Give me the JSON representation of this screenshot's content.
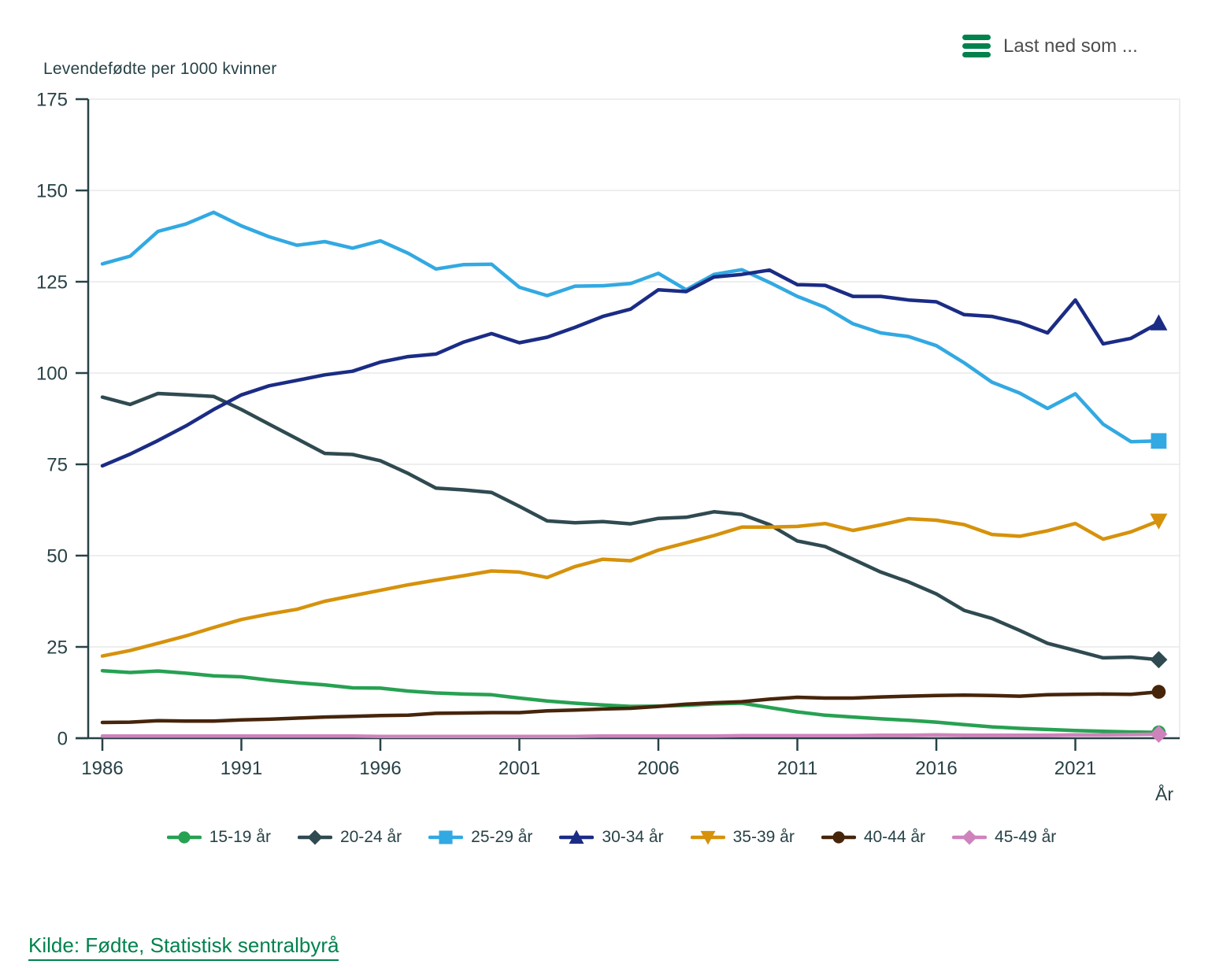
{
  "header": {
    "download_label": "Last ned som ...",
    "icons": {
      "download_menu": "hamburger-menu-icon"
    }
  },
  "colors": {
    "accent_green": "#00824d",
    "text_dark": "#274247",
    "download_text": "#4d4d4d",
    "grid": "#e8e8e8",
    "axis": "#274247"
  },
  "source": {
    "label": "Kilde: Fødte, Statistisk sentralbyrå"
  },
  "chart_data": {
    "type": "line",
    "title": "Levendefødte per 1000 kvinner",
    "xlabel": "År",
    "ylabel": "Levendefødte per 1000 kvinner",
    "ylim": [
      0,
      175
    ],
    "yticks": [
      0,
      25,
      50,
      75,
      100,
      125,
      150,
      175
    ],
    "xticks": [
      1986,
      1991,
      1996,
      2001,
      2006,
      2011,
      2016,
      2021
    ],
    "grid": "horizontal",
    "legend_position": "bottom",
    "x": [
      1986,
      1987,
      1988,
      1989,
      1990,
      1991,
      1992,
      1993,
      1994,
      1995,
      1996,
      1997,
      1998,
      1999,
      2000,
      2001,
      2002,
      2003,
      2004,
      2005,
      2006,
      2007,
      2008,
      2009,
      2010,
      2011,
      2012,
      2013,
      2014,
      2015,
      2016,
      2017,
      2018,
      2019,
      2020,
      2021,
      2022,
      2023,
      2024
    ],
    "series": [
      {
        "name": "15-19 år",
        "color": "#27a152",
        "marker": "circle",
        "values": [
          18.5,
          18,
          18.4,
          17.8,
          17.1,
          16.8,
          15.9,
          15.2,
          14.6,
          13.8,
          13.7,
          12.9,
          12.4,
          12.1,
          11.9,
          11,
          10.2,
          9.6,
          9.1,
          8.7,
          8.8,
          9,
          9.4,
          9.6,
          8.4,
          7.2,
          6.3,
          5.8,
          5.3,
          4.9,
          4.4,
          3.7,
          3.1,
          2.7,
          2.4,
          2.1,
          1.9,
          1.7,
          1.6
        ]
      },
      {
        "name": "20-24 år",
        "color": "#2f4a50",
        "marker": "diamond",
        "values": [
          93.4,
          91.4,
          94.4,
          94,
          93.6,
          90,
          86,
          82,
          78,
          77.7,
          76,
          72.5,
          68.5,
          68,
          67.3,
          63.5,
          59.5,
          59,
          59.3,
          58.7,
          60.2,
          60.5,
          62,
          61.3,
          58.5,
          54,
          52.5,
          49,
          45.5,
          42.8,
          39.5,
          35,
          32.8,
          29.5,
          26,
          24,
          22,
          22.2,
          21.5
        ]
      },
      {
        "name": "25-29 år",
        "color": "#32a9e2",
        "marker": "square",
        "values": [
          129.9,
          132,
          138.8,
          140.8,
          144,
          140.3,
          137.3,
          135,
          136,
          134.2,
          136.2,
          132.8,
          128.5,
          129.7,
          129.8,
          123.5,
          121.2,
          123.8,
          123.9,
          124.5,
          127.3,
          122.8,
          127,
          128.3,
          124.8,
          121,
          118,
          113.5,
          111,
          110,
          107.5,
          102.8,
          97.5,
          94.5,
          90.3,
          94.3,
          86,
          81.2,
          81.4
        ]
      },
      {
        "name": "30-34 år",
        "color": "#1b2c85",
        "marker": "triangle-up",
        "values": [
          74.6,
          77.8,
          81.5,
          85.5,
          90,
          94,
          96.5,
          98,
          99.5,
          100.5,
          103,
          104.5,
          105.2,
          108.5,
          110.8,
          108.3,
          109.8,
          112.5,
          115.5,
          117.5,
          122.8,
          122.3,
          126.3,
          127,
          128.2,
          124.2,
          124,
          121,
          121,
          120,
          119.5,
          116,
          115.5,
          113.8,
          111,
          120,
          108,
          109.5,
          113.7
        ]
      },
      {
        "name": "35-39 år",
        "color": "#d6920c",
        "marker": "triangle-down",
        "values": [
          22.5,
          24,
          26,
          28,
          30.3,
          32.5,
          34,
          35.3,
          37.5,
          39,
          40.5,
          42,
          43.3,
          44.5,
          45.8,
          45.5,
          44,
          47,
          49,
          48.6,
          51.5,
          53.5,
          55.5,
          57.8,
          57.8,
          58,
          58.8,
          56.9,
          58.4,
          60.1,
          59.7,
          58.5,
          55.8,
          55.3,
          56.8,
          58.8,
          54.5,
          56.5,
          59.5
        ]
      },
      {
        "name": "40-44 år",
        "color": "#46250b",
        "marker": "circle",
        "values": [
          4.3,
          4.4,
          4.8,
          4.7,
          4.7,
          5,
          5.2,
          5.5,
          5.8,
          6,
          6.2,
          6.3,
          6.8,
          6.9,
          7,
          7,
          7.5,
          7.7,
          8,
          8.2,
          8.7,
          9.3,
          9.7,
          10,
          10.7,
          11.2,
          11,
          11,
          11.3,
          11.5,
          11.7,
          11.8,
          11.7,
          11.5,
          11.9,
          12,
          12.1,
          12,
          12.7
        ]
      },
      {
        "name": "45-49 år",
        "color": "#cf83bc",
        "marker": "diamond",
        "values": [
          0.6,
          0.6,
          0.6,
          0.6,
          0.6,
          0.6,
          0.6,
          0.6,
          0.6,
          0.6,
          0.5,
          0.5,
          0.5,
          0.5,
          0.5,
          0.5,
          0.5,
          0.5,
          0.6,
          0.6,
          0.6,
          0.6,
          0.6,
          0.7,
          0.7,
          0.7,
          0.7,
          0.7,
          0.8,
          0.8,
          0.9,
          0.8,
          0.8,
          0.8,
          0.8,
          0.9,
          0.9,
          1,
          1.1
        ]
      }
    ]
  }
}
